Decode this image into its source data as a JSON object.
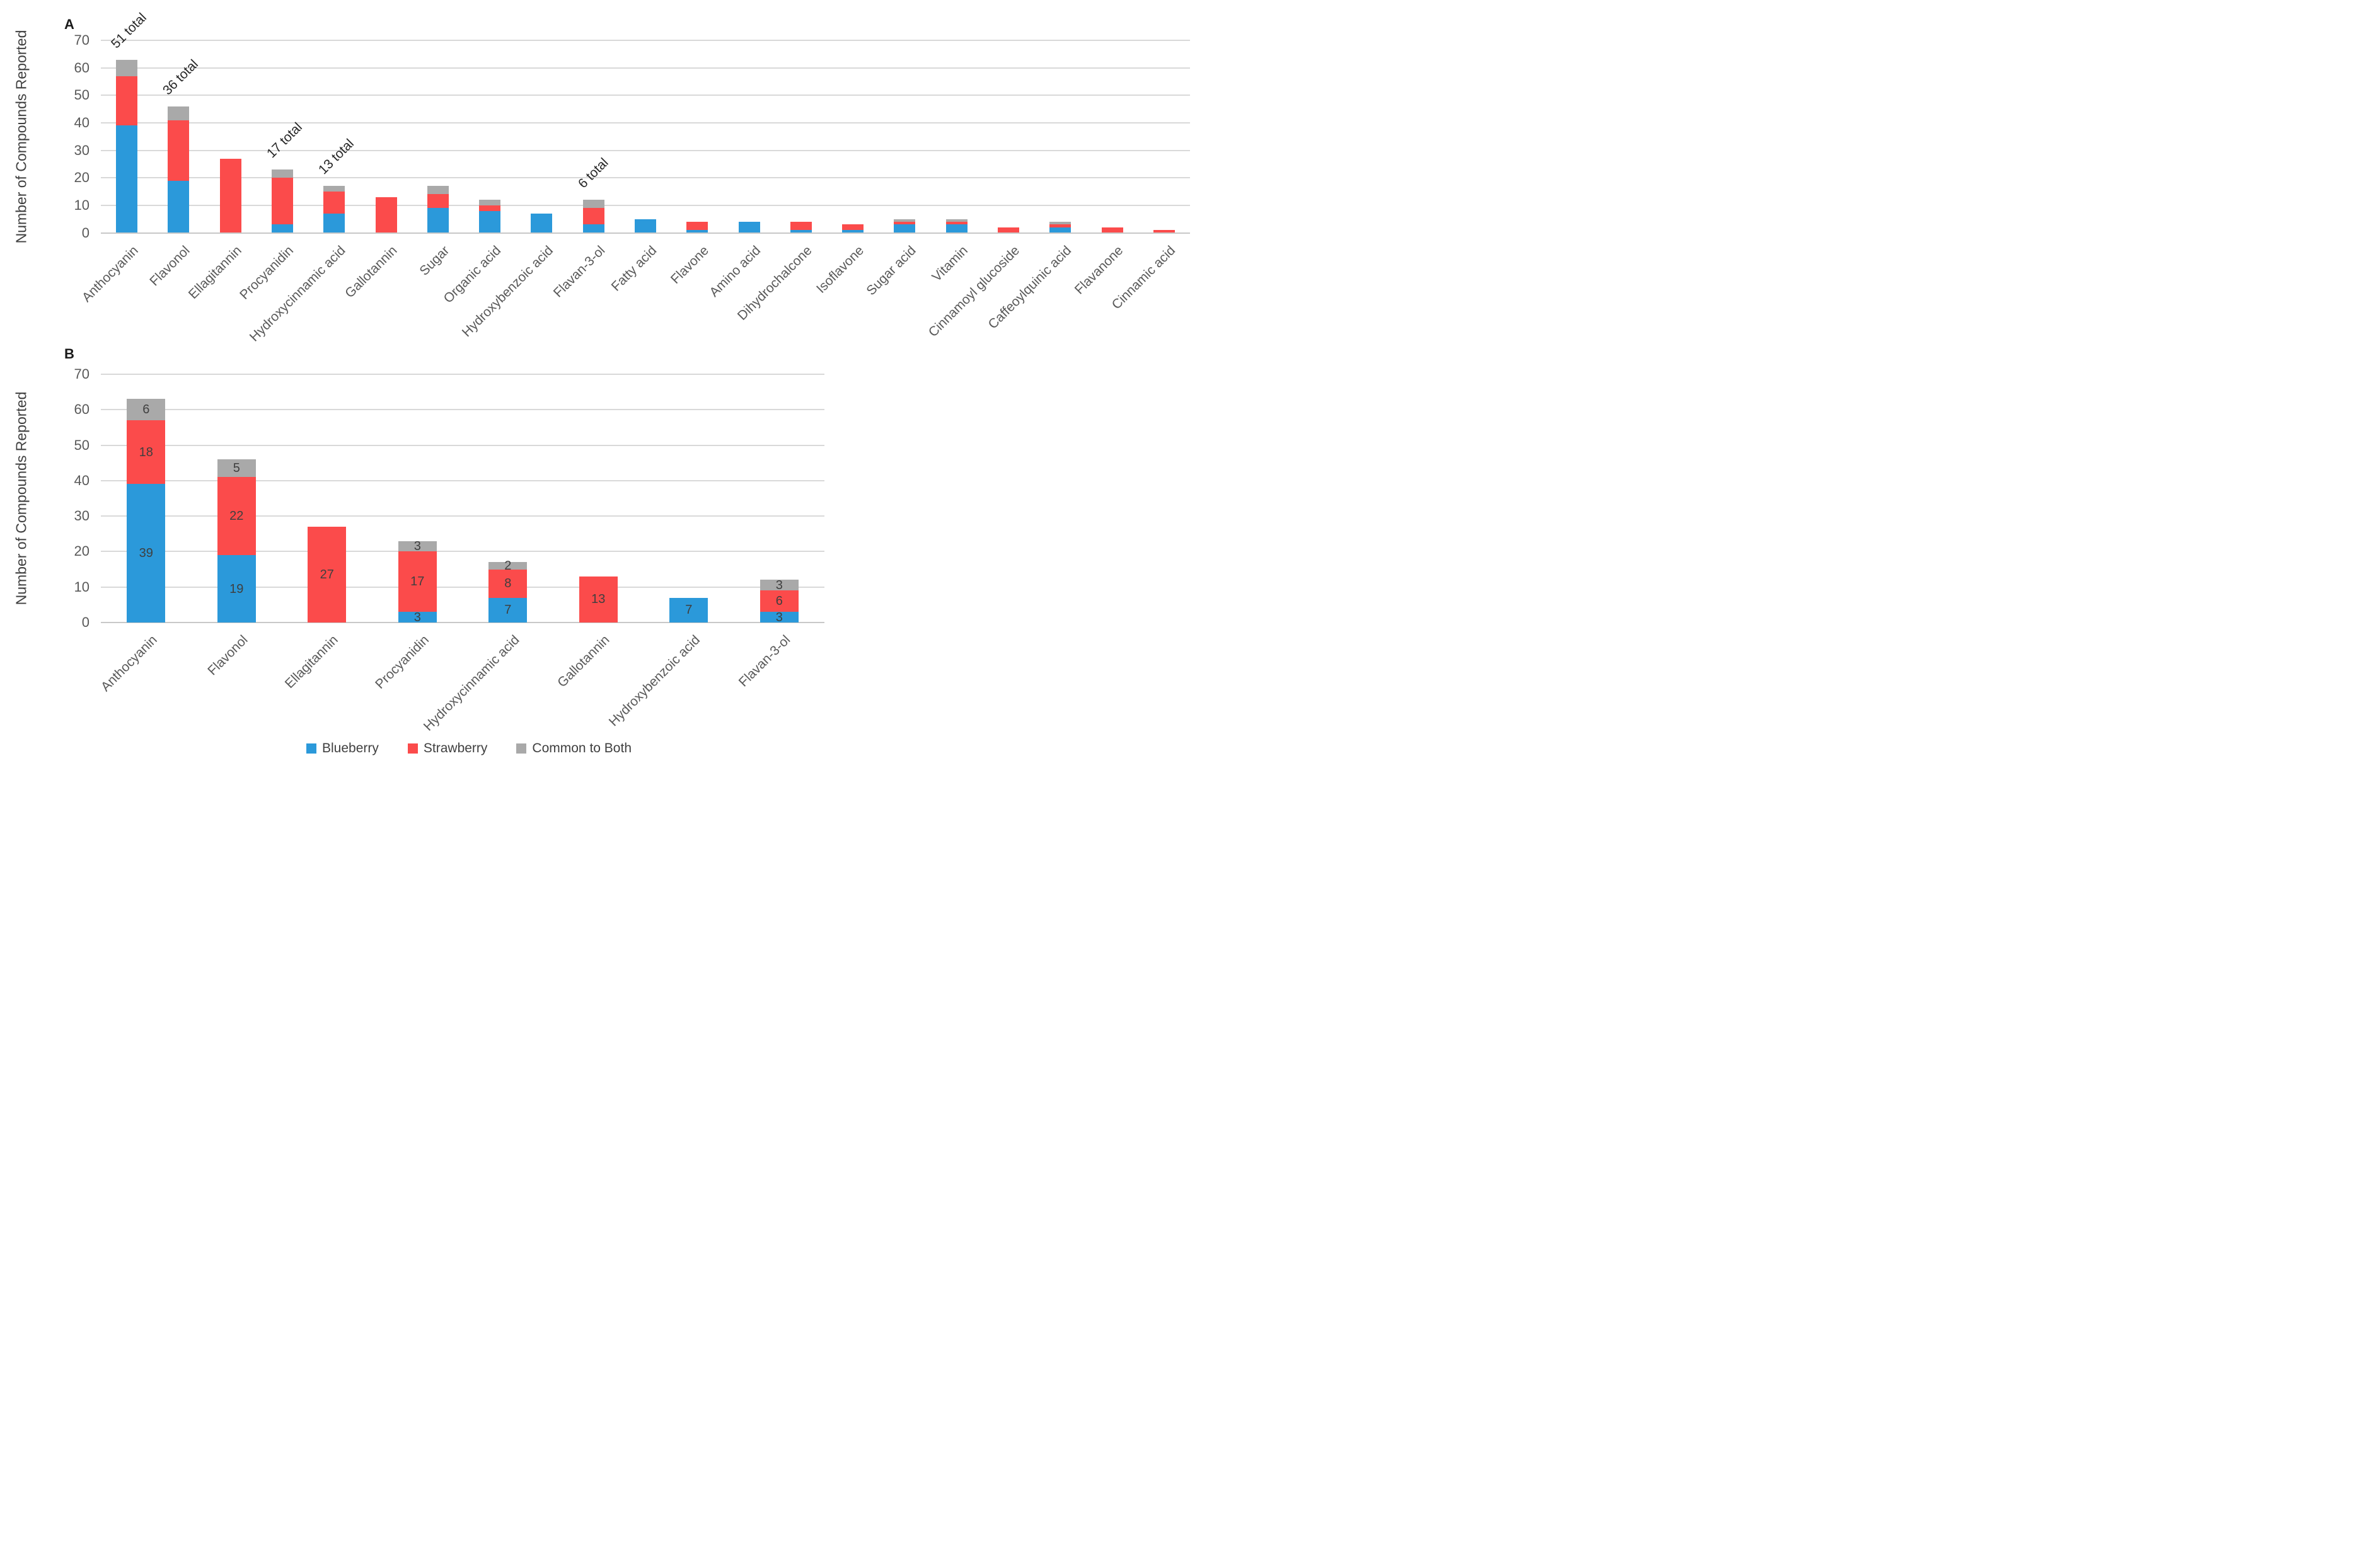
{
  "figure": {
    "background": "#ffffff"
  },
  "panels": [
    {
      "letter": "A",
      "y_axis_title": "Number of Compounds Reported"
    },
    {
      "letter": "B",
      "y_axis_title": "Number of Compounds Reported"
    }
  ],
  "legend": {
    "items": [
      {
        "label": "Blueberry",
        "color": "#2b99da"
      },
      {
        "label": "Strawberry",
        "color": "#fb4b4b"
      },
      {
        "label": "Common to Both",
        "color": "#a9a9a9"
      }
    ]
  },
  "colors": {
    "blueberry": "#2b99da",
    "strawberry": "#fb4b4b",
    "common_to_both": "#a9a9a9",
    "gridline": "#d9d9d9",
    "axis_text": "#595959",
    "bar_value_label": "#3f3f3f",
    "annotation_text": "#262626"
  },
  "chart_data": [
    {
      "type": "bar",
      "stacked": true,
      "panel": "A",
      "ylabel": "Number of Compounds Reported",
      "ylim": [
        0,
        70
      ],
      "ytick_step": 10,
      "grid": true,
      "categories": [
        "Anthocyanin",
        "Flavonol",
        "Ellagitannin",
        "Procyanidin",
        "Hydroxycinnamic acid",
        "Gallotannin",
        "Sugar",
        "Organic acid",
        "Hydroxybenzoic acid",
        "Flavan-3-ol",
        "Fatty acid",
        "Flavone",
        "Amino acid",
        "Dihydrochalcone",
        "Isoflavone",
        "Sugar acid",
        "Vitamin",
        "Cinnamoyl glucoside",
        "Caffeoylquinic acid",
        "Flavanone",
        "Cinnamic acid"
      ],
      "series": [
        {
          "name": "Blueberry",
          "color": "#2b99da",
          "values": [
            39,
            19,
            0,
            3,
            7,
            0,
            9,
            8,
            7,
            3,
            5,
            1,
            4,
            1,
            1,
            3,
            3,
            0,
            2,
            0,
            0
          ]
        },
        {
          "name": "Strawberry",
          "color": "#fb4b4b",
          "values": [
            18,
            22,
            27,
            17,
            8,
            13,
            5,
            2,
            0,
            6,
            0,
            3,
            0,
            3,
            2,
            1,
            1,
            2,
            1,
            2,
            1
          ]
        },
        {
          "name": "Common to Both",
          "color": "#a9a9a9",
          "values": [
            6,
            5,
            0,
            3,
            2,
            0,
            3,
            2,
            0,
            3,
            0,
            0,
            0,
            0,
            0,
            1,
            1,
            0,
            1,
            0,
            0
          ]
        }
      ],
      "annotations": [
        {
          "category": "Anthocyanin",
          "text": "51 total"
        },
        {
          "category": "Flavonol",
          "text": "36 total"
        },
        {
          "category": "Procyanidin",
          "text": "17 total"
        },
        {
          "category": "Hydroxycinnamic acid",
          "text": "13 total"
        },
        {
          "category": "Flavan-3-ol",
          "text": "6 total"
        }
      ],
      "segment_value_labels": false,
      "legend_position": "none"
    },
    {
      "type": "bar",
      "stacked": true,
      "panel": "B",
      "ylabel": "Number of Compounds Reported",
      "ylim": [
        0,
        70
      ],
      "ytick_step": 10,
      "grid": true,
      "categories": [
        "Anthocyanin",
        "Flavonol",
        "Ellagitannin",
        "Procyanidin",
        "Hydroxycinnamic acid",
        "Gallotannin",
        "Hydroxybenzoic acid",
        "Flavan-3-ol"
      ],
      "series": [
        {
          "name": "Blueberry",
          "color": "#2b99da",
          "values": [
            39,
            19,
            0,
            3,
            7,
            0,
            7,
            3
          ]
        },
        {
          "name": "Strawberry",
          "color": "#fb4b4b",
          "values": [
            18,
            22,
            27,
            17,
            8,
            13,
            0,
            6
          ]
        },
        {
          "name": "Common to Both",
          "color": "#a9a9a9",
          "values": [
            6,
            5,
            0,
            3,
            2,
            0,
            0,
            3
          ]
        }
      ],
      "annotations": [],
      "segment_value_labels": true,
      "legend_position": "bottom"
    }
  ]
}
